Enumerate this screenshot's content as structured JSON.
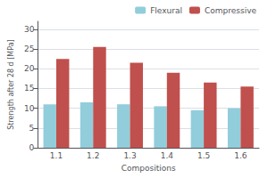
{
  "chart_data": {
    "type": "bar",
    "xlabel": "Compositions",
    "ylabel": "Strength after 28 d [MPa]",
    "categories": [
      "1.1",
      "1.2",
      "1.3",
      "1.4",
      "1.5",
      "1.6"
    ],
    "series": [
      {
        "name": "Flexural",
        "color": "#92CDDC",
        "values": [
          11.0,
          11.5,
          11.0,
          10.5,
          9.5,
          10.0
        ]
      },
      {
        "name": "Compressive",
        "color": "#C0504D",
        "values": [
          22.5,
          25.5,
          21.5,
          19.0,
          16.5,
          15.5
        ]
      }
    ],
    "ylim": [
      0,
      32
    ],
    "yticks": [
      0,
      5,
      10,
      15,
      20,
      25,
      30
    ],
    "grid": true,
    "legend": "upper right"
  }
}
